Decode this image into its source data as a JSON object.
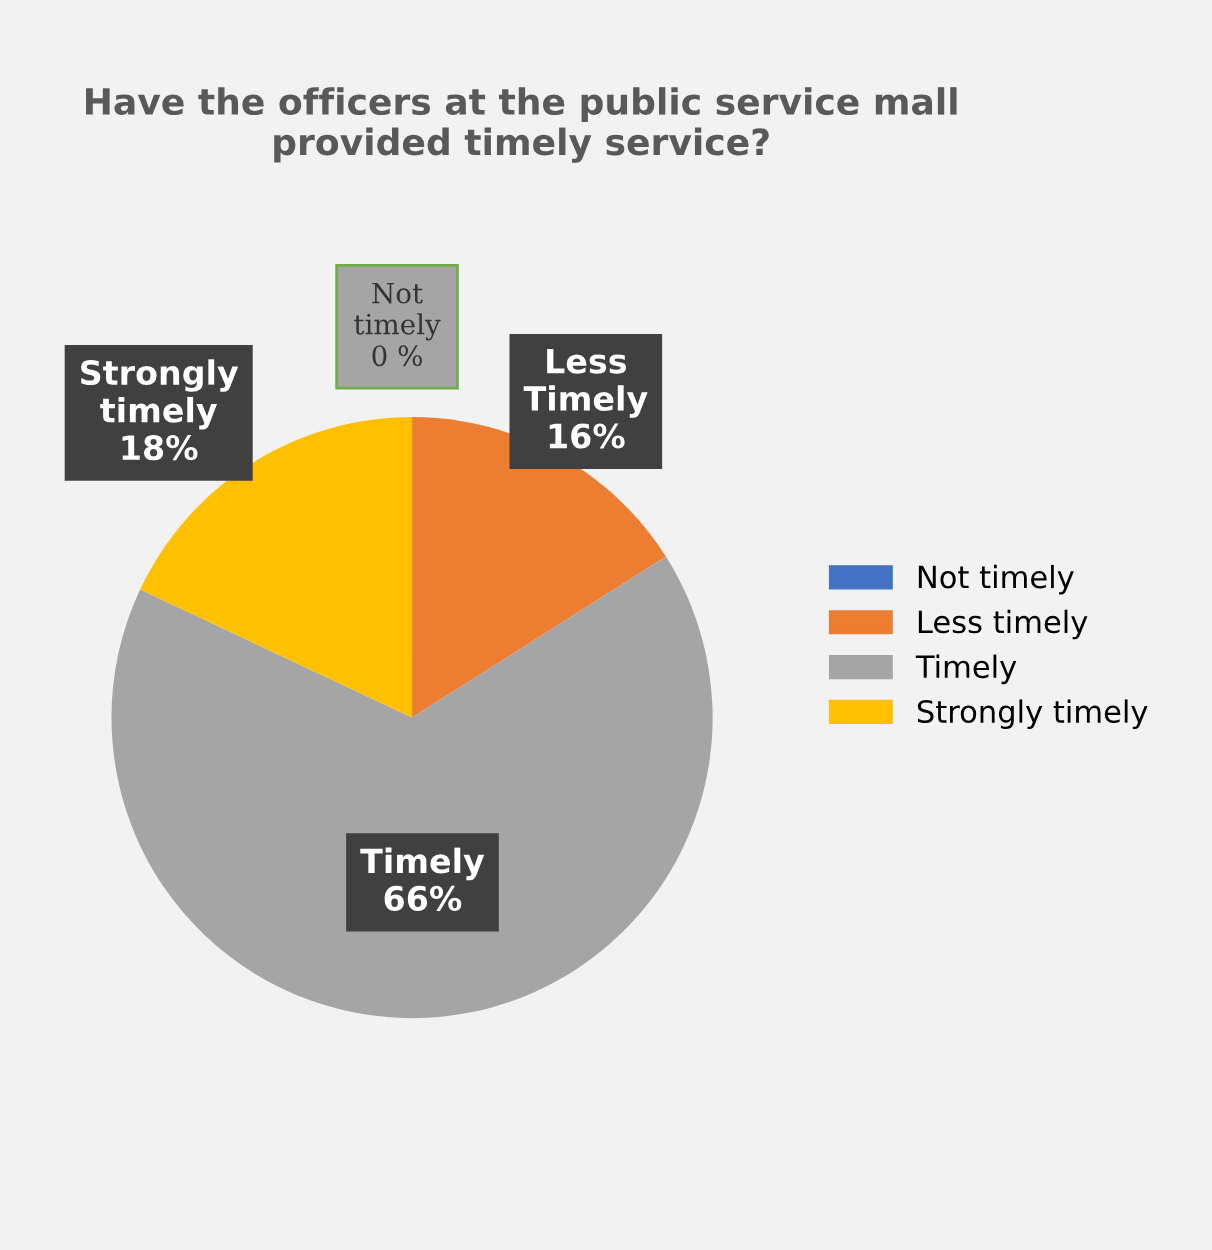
{
  "chart_data": {
    "type": "pie",
    "title": "Have the officers at the public service mall provided timely service?",
    "categories": [
      "Not timely",
      "Less timely",
      "Timely",
      "Strongly timely"
    ],
    "values": [
      0,
      16,
      66,
      18
    ],
    "colors": [
      "#4472c4",
      "#ed7d31",
      "#a5a5a5",
      "#ffc000"
    ],
    "value_labels": [
      "Not\ntimely\n0 %",
      "Less\nTimely\n16%",
      "Timely\n66%",
      "Strongly\ntimely\n18%"
    ],
    "legend": "right"
  }
}
